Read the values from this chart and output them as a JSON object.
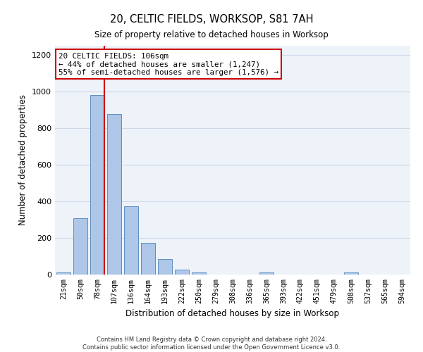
{
  "title_line1": "20, CELTIC FIELDS, WORKSOP, S81 7AH",
  "title_line2": "Size of property relative to detached houses in Worksop",
  "xlabel": "Distribution of detached houses by size in Worksop",
  "ylabel": "Number of detached properties",
  "categories": [
    "21sqm",
    "50sqm",
    "78sqm",
    "107sqm",
    "136sqm",
    "164sqm",
    "193sqm",
    "222sqm",
    "250sqm",
    "279sqm",
    "308sqm",
    "336sqm",
    "365sqm",
    "393sqm",
    "422sqm",
    "451sqm",
    "479sqm",
    "508sqm",
    "537sqm",
    "565sqm",
    "594sqm"
  ],
  "values": [
    13,
    308,
    981,
    878,
    372,
    175,
    85,
    27,
    12,
    0,
    0,
    0,
    10,
    0,
    0,
    0,
    0,
    12,
    0,
    0,
    0
  ],
  "bar_color": "#aec6e8",
  "bar_edge_color": "#5a8fc2",
  "grid_color": "#d0d8e8",
  "vline_color": "#cc0000",
  "annotation_text": "20 CELTIC FIELDS: 106sqm\n← 44% of detached houses are smaller (1,247)\n55% of semi-detached houses are larger (1,576) →",
  "annotation_box_color": "#ffffff",
  "annotation_border_color": "#cc0000",
  "ylim": [
    0,
    1250
  ],
  "yticks": [
    0,
    200,
    400,
    600,
    800,
    1000,
    1200
  ],
  "footer_line1": "Contains HM Land Registry data © Crown copyright and database right 2024.",
  "footer_line2": "Contains public sector information licensed under the Open Government Licence v3.0.",
  "background_color": "#eef2f9"
}
